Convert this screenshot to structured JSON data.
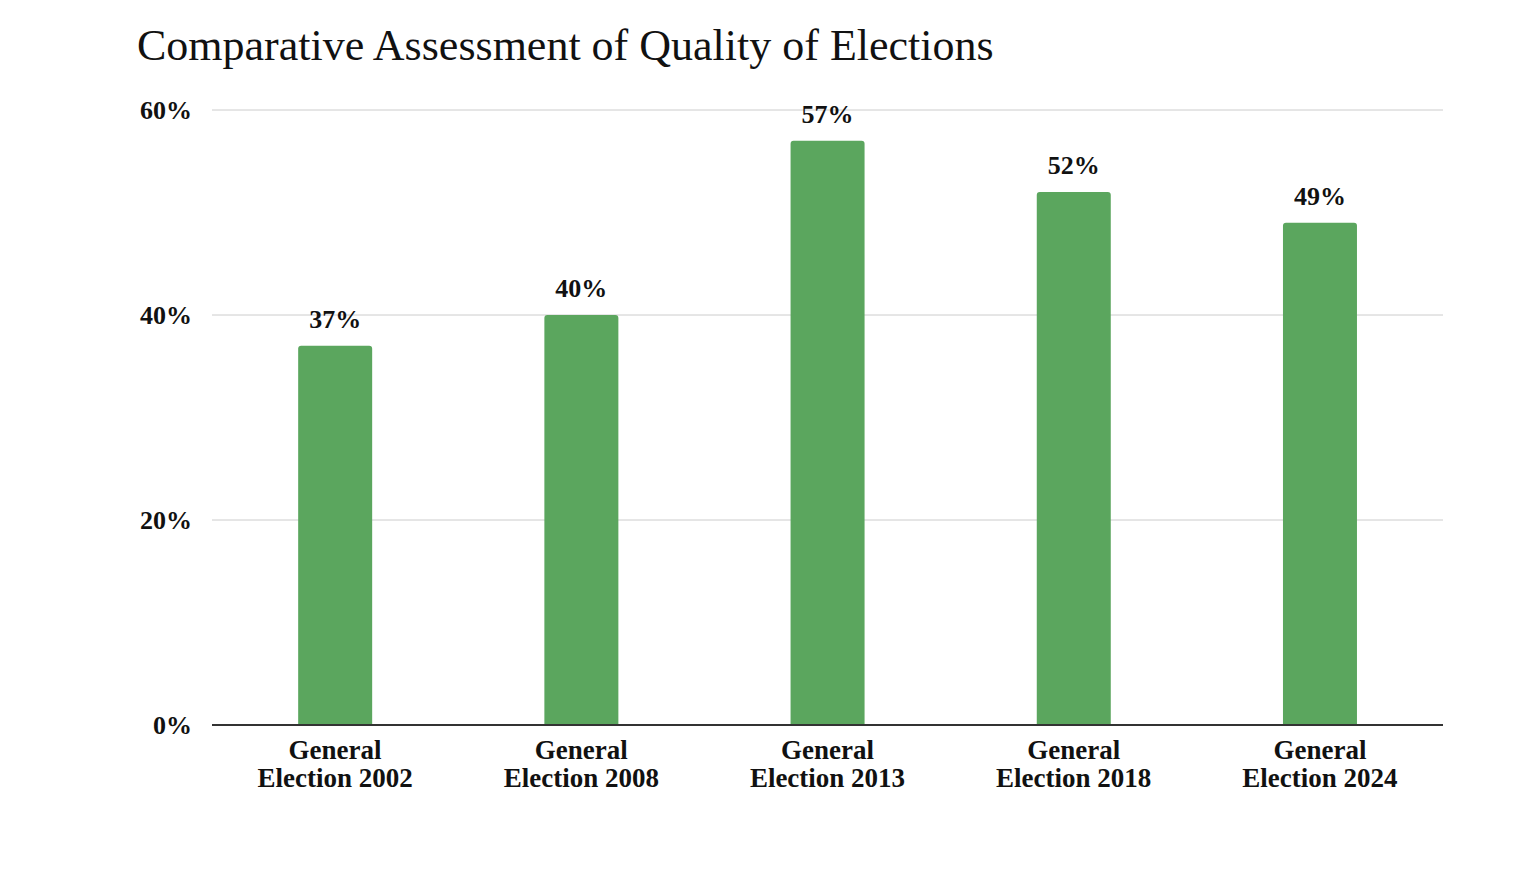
{
  "chart_data": {
    "type": "bar",
    "title": "Comparative Assessment of Quality of Elections",
    "categories": [
      "General Election 2002",
      "General Election 2008",
      "General Election 2013",
      "General Election 2018",
      "General Election 2024"
    ],
    "values": [
      37,
      40,
      57,
      52,
      49
    ],
    "value_labels": [
      "37%",
      "40%",
      "57%",
      "52%",
      "49%"
    ],
    "color": "#5ba65e",
    "ylim": [
      0,
      60
    ],
    "yticks": [
      {
        "value": 0,
        "label": "0%"
      },
      {
        "value": 20,
        "label": "20%"
      },
      {
        "value": 40,
        "label": "40%"
      },
      {
        "value": 60,
        "label": "60%"
      }
    ],
    "grid": true,
    "data_labels": true
  }
}
